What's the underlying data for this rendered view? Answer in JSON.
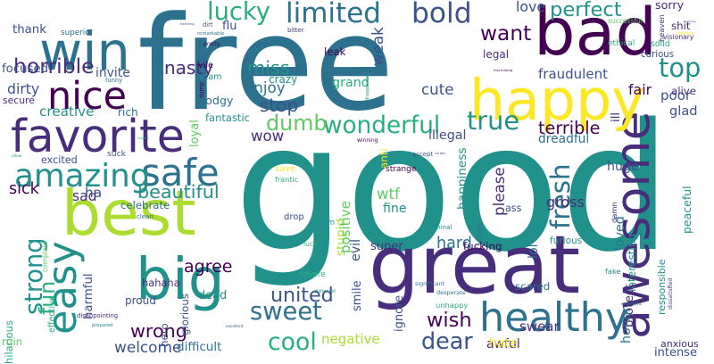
{
  "word_cloud": {
    "background": "#ffffff",
    "palette": [
      "#440154",
      "#472d7b",
      "#3b528b",
      "#2c728e",
      "#21918c",
      "#28ae80",
      "#5ec962",
      "#addc30",
      "#fde725"
    ],
    "words": [
      {
        "text": "good",
        "color": "#21918c"
      },
      {
        "text": "free",
        "color": "#2c728e"
      },
      {
        "text": "great",
        "color": "#472d7b"
      },
      {
        "text": "best",
        "color": "#addc30"
      },
      {
        "text": "bad",
        "color": "#440154"
      },
      {
        "text": "big",
        "color": "#21918c"
      },
      {
        "text": "awesome",
        "color": "#472d7b"
      },
      {
        "text": "favorite",
        "color": "#472d7b"
      },
      {
        "text": "happy",
        "color": "#fde725"
      },
      {
        "text": "healthy",
        "color": "#2c728e"
      },
      {
        "text": "win",
        "color": "#2c728e"
      },
      {
        "text": "nice",
        "color": "#440154"
      },
      {
        "text": "safe",
        "color": "#2c728e"
      },
      {
        "text": "easy",
        "color": "#21918c"
      },
      {
        "text": "amazing",
        "color": "#21918c"
      },
      {
        "text": "horrible",
        "color": "#472d7b"
      },
      {
        "text": "limited",
        "color": "#2c728e"
      },
      {
        "text": "bold",
        "color": "#3b528b"
      },
      {
        "text": "lucky",
        "color": "#28ae80"
      },
      {
        "text": "top",
        "color": "#21918c"
      },
      {
        "text": "wonderful",
        "color": "#28ae80"
      },
      {
        "text": "true",
        "color": "#21918c"
      },
      {
        "text": "perfect",
        "color": "#21918c"
      },
      {
        "text": "want",
        "color": "#440154"
      },
      {
        "text": "curious",
        "color": "#3b528b"
      },
      {
        "text": "sweet",
        "color": "#2c728e"
      },
      {
        "text": "cool",
        "color": "#28ae80"
      },
      {
        "text": "strong",
        "color": "#21918c"
      },
      {
        "text": "fresh",
        "color": "#2c728e"
      },
      {
        "text": "beautiful",
        "color": "#21918c"
      },
      {
        "text": "united",
        "color": "#3b528b"
      },
      {
        "text": "wrong",
        "color": "#440154"
      },
      {
        "text": "dear",
        "color": "#3b528b"
      },
      {
        "text": "wish",
        "color": "#440154"
      },
      {
        "text": "interesting",
        "color": "#21918c"
      },
      {
        "text": "terrible",
        "color": "#440154"
      },
      {
        "text": "fun",
        "color": "#28ae80"
      },
      {
        "text": "hilarious",
        "color": "#28ae80"
      },
      {
        "text": "creative",
        "color": "#21918c"
      },
      {
        "text": "fair",
        "color": "#440154"
      },
      {
        "text": "miss",
        "color": "#21918c"
      },
      {
        "text": "nasty",
        "color": "#472d7b"
      },
      {
        "text": "dumb",
        "color": "#5ec962"
      },
      {
        "text": "stop",
        "color": "#3b528b"
      },
      {
        "text": "enjoy",
        "color": "#2c728e"
      },
      {
        "text": "fraudulent",
        "color": "#3b528b"
      },
      {
        "text": "sorry",
        "color": "#472d7b"
      },
      {
        "text": "poor",
        "color": "#3b528b"
      },
      {
        "text": "focused",
        "color": "#3b528b"
      },
      {
        "text": "invite",
        "color": "#3b528b"
      },
      {
        "text": "thank",
        "color": "#3b528b"
      },
      {
        "text": "dirty",
        "color": "#3b528b"
      },
      {
        "text": "sick",
        "color": "#440154"
      },
      {
        "text": "sad",
        "color": "#472d7b"
      },
      {
        "text": "agree",
        "color": "#440154"
      },
      {
        "text": "celebrate",
        "color": "#2c728e"
      },
      {
        "text": "gross",
        "color": "#472d7b"
      },
      {
        "text": "fine",
        "color": "#21918c"
      },
      {
        "text": "stupid",
        "color": "#addc30"
      },
      {
        "text": "positive",
        "color": "#5ec962"
      },
      {
        "text": "happiness",
        "color": "#21918c"
      },
      {
        "text": "please",
        "color": "#472d7b"
      },
      {
        "text": "hard",
        "color": "#2c728e"
      },
      {
        "text": "difficult",
        "color": "#2c728e"
      },
      {
        "text": "welcome",
        "color": "#3b528b"
      },
      {
        "text": "negative",
        "color": "#addc30"
      },
      {
        "text": "awful",
        "color": "#472d7b"
      },
      {
        "text": "swear",
        "color": "#472d7b"
      },
      {
        "text": "responsible",
        "color": "#21918c"
      },
      {
        "text": "peaceful",
        "color": "#21918c"
      },
      {
        "text": "glad",
        "color": "#3b528b"
      },
      {
        "text": "love",
        "color": "#3b528b"
      },
      {
        "text": "cute",
        "color": "#3b528b"
      },
      {
        "text": "grand",
        "color": "#28ae80"
      },
      {
        "text": "legal",
        "color": "#472d7b"
      },
      {
        "text": "weak",
        "color": "#3b528b"
      },
      {
        "text": "ill",
        "color": "#472d7b"
      },
      {
        "text": "dreadful",
        "color": "#2c728e"
      },
      {
        "text": "illegal",
        "color": "#3b528b"
      },
      {
        "text": "proud",
        "color": "#3b528b"
      },
      {
        "text": "dead",
        "color": "#21918c"
      },
      {
        "text": "severe",
        "color": "#28ae80"
      },
      {
        "text": "harmful",
        "color": "#3b528b"
      },
      {
        "text": "effective",
        "color": "#28ae80"
      },
      {
        "text": "excited",
        "color": "#3b528b"
      },
      {
        "text": "hahaha",
        "color": "#472d7b"
      },
      {
        "text": "ethical",
        "color": "#28ae80"
      },
      {
        "text": "successful",
        "color": "#5ec962"
      },
      {
        "text": "superior",
        "color": "#2c728e"
      },
      {
        "text": "remarkable",
        "color": "#2c728e"
      },
      {
        "text": "harming",
        "color": "#3b528b"
      },
      {
        "text": "dirt",
        "color": "#3b528b"
      },
      {
        "text": "flu",
        "color": "#3b528b"
      },
      {
        "text": "bitter",
        "color": "#472d7b"
      },
      {
        "text": "leak",
        "color": "#440154"
      },
      {
        "text": "crazy",
        "color": "#21918c"
      },
      {
        "text": "pretty",
        "color": "#440154"
      },
      {
        "text": "vile",
        "color": "#440154"
      },
      {
        "text": "scam",
        "color": "#21918c"
      },
      {
        "text": "dump",
        "color": "#440154"
      },
      {
        "text": "dodgy",
        "color": "#2c728e"
      },
      {
        "text": "funny",
        "color": "#2c728e"
      },
      {
        "text": "secure",
        "color": "#472d7b"
      },
      {
        "text": "rich",
        "color": "#2c728e"
      },
      {
        "text": "inspire",
        "color": "#28ae80"
      },
      {
        "text": "suck",
        "color": "#3b528b"
      },
      {
        "text": "ha",
        "color": "#3b528b"
      },
      {
        "text": "wow",
        "color": "#472d7b"
      },
      {
        "text": "loyal",
        "color": "#5ec962"
      },
      {
        "text": "fantastic",
        "color": "#21918c"
      },
      {
        "text": "fascinating",
        "color": "#440154"
      },
      {
        "text": "disappointed",
        "color": "#21918c"
      },
      {
        "text": "shit",
        "color": "#472d7b"
      },
      {
        "text": "solid",
        "color": "#28ae80"
      },
      {
        "text": "visionary",
        "color": "#472d7b"
      },
      {
        "text": "horrendous",
        "color": "#472d7b"
      },
      {
        "text": "heaven",
        "color": "#472d7b"
      },
      {
        "text": "alive",
        "color": "#472d7b"
      },
      {
        "text": "inferior",
        "color": "#fde725"
      },
      {
        "text": "winning",
        "color": "#440154"
      },
      {
        "text": "anti",
        "color": "#fde725"
      },
      {
        "text": "allow",
        "color": "#21918c"
      },
      {
        "text": "complain",
        "color": "#5ec962"
      },
      {
        "text": "save",
        "color": "#fde725"
      },
      {
        "text": "frantic",
        "color": "#28ae80"
      },
      {
        "text": "drop",
        "color": "#3b528b"
      },
      {
        "text": "dream",
        "color": "#21918c"
      },
      {
        "text": "evil",
        "color": "#3b528b"
      },
      {
        "text": "luck",
        "color": "#28ae80"
      },
      {
        "text": "strange",
        "color": "#440154"
      },
      {
        "text": "wtf",
        "color": "#5ec962"
      },
      {
        "text": "accept",
        "color": "#3b528b"
      },
      {
        "text": "certain",
        "color": "#3b528b"
      },
      {
        "text": "jesus",
        "color": "#2c728e"
      },
      {
        "text": "ass",
        "color": "#3b528b"
      },
      {
        "text": "huge",
        "color": "#3b528b"
      },
      {
        "text": "damn",
        "color": "#472d7b"
      },
      {
        "text": "loved",
        "color": "#2c728e"
      },
      {
        "text": "fake",
        "color": "#21918c"
      },
      {
        "text": "furious",
        "color": "#21918c"
      },
      {
        "text": "lol",
        "color": "#2c728e"
      },
      {
        "text": "fucking",
        "color": "#440154"
      },
      {
        "text": "criminal",
        "color": "#21918c"
      },
      {
        "text": "super",
        "color": "#472d7b"
      },
      {
        "text": "smile",
        "color": "#3b528b"
      },
      {
        "text": "significant",
        "color": "#2c728e"
      },
      {
        "text": "ignore",
        "color": "#3b528b"
      },
      {
        "text": "desperate",
        "color": "#2c728e"
      },
      {
        "text": "unhappy",
        "color": "#28ae80"
      },
      {
        "text": "scared",
        "color": "#2c728e"
      },
      {
        "text": "dishonest",
        "color": "#21918c"
      },
      {
        "text": "clean",
        "color": "#2c728e"
      },
      {
        "text": "hero",
        "color": "#3b528b"
      },
      {
        "text": "disappointing",
        "color": "#472d7b"
      },
      {
        "text": "prepared",
        "color": "#21918c"
      },
      {
        "text": "ruin",
        "color": "#5ec962"
      },
      {
        "text": "glorious",
        "color": "#3b528b"
      },
      {
        "text": "excellent",
        "color": "#3b528b"
      },
      {
        "text": "hate",
        "color": "#fde725"
      },
      {
        "text": "protect",
        "color": "#472d7b"
      },
      {
        "text": "energetic",
        "color": "#2c728e"
      },
      {
        "text": "honor",
        "color": "#2c728e"
      },
      {
        "text": "dissatisfied",
        "color": "#472d7b"
      },
      {
        "text": "anxious",
        "color": "#472d7b"
      },
      {
        "text": "intense",
        "color": "#3b528b"
      },
      {
        "text": "interested",
        "color": "#2c728e"
      }
    ]
  }
}
